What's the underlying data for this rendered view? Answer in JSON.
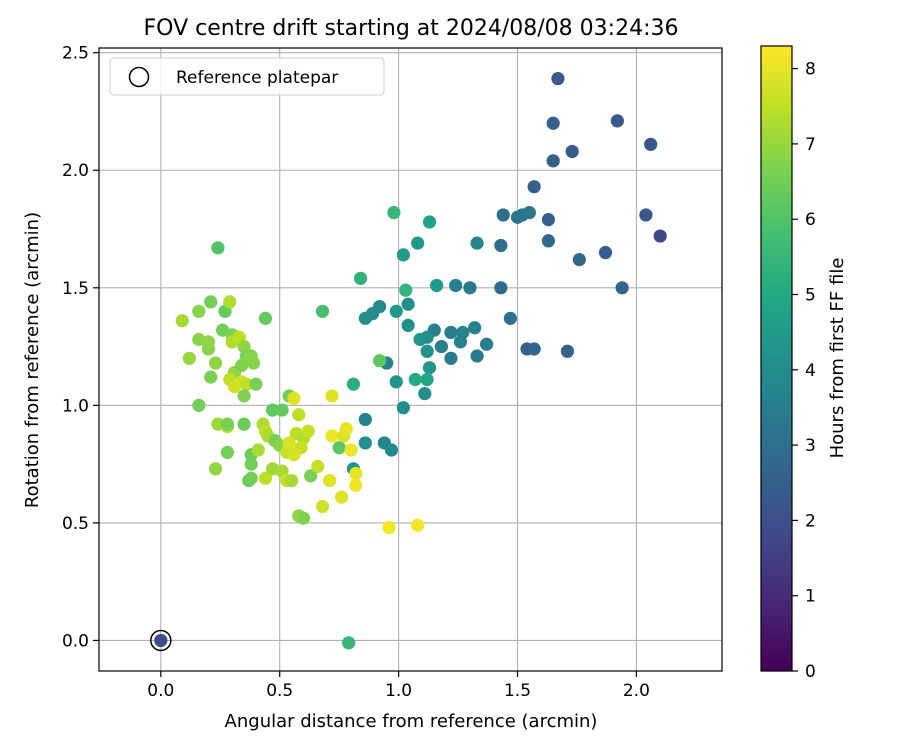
{
  "chart_data": {
    "type": "scatter",
    "title": "FOV centre drift starting at 2024/08/08 03:24:36",
    "xlabel": "Angular distance from reference (arcmin)",
    "ylabel": "Rotation from reference (arcmin)",
    "xlim": [
      -0.26,
      2.36
    ],
    "ylim": [
      -0.13,
      2.52
    ],
    "xticks": [
      0.0,
      0.5,
      1.0,
      1.5,
      2.0
    ],
    "xtick_labels": [
      "0.0",
      "0.5",
      "1.0",
      "1.5",
      "2.0"
    ],
    "yticks": [
      0.0,
      0.5,
      1.0,
      1.5,
      2.0,
      2.5
    ],
    "ytick_labels": [
      "0.0",
      "0.5",
      "1.0",
      "1.5",
      "2.0",
      "2.5"
    ],
    "grid": true,
    "legend": {
      "position": "top-left",
      "entries": [
        "Reference platepar"
      ]
    },
    "colorbar": {
      "label": "Hours from first FF file",
      "min": 0,
      "max": 8.3,
      "ticks": [
        0,
        1,
        2,
        3,
        4,
        5,
        6,
        7,
        8
      ],
      "tick_labels": [
        "0",
        "1",
        "2",
        "3",
        "4",
        "5",
        "6",
        "7",
        "8"
      ],
      "colormap": "viridis"
    },
    "reference_point": {
      "x": 0.0,
      "y": 0.0
    },
    "points": [
      {
        "x": 0.0,
        "y": 0.0,
        "c": 1.9
      },
      {
        "x": 1.67,
        "y": 2.39,
        "c": 2.3
      },
      {
        "x": 1.65,
        "y": 2.2,
        "c": 2.5
      },
      {
        "x": 1.65,
        "y": 2.04,
        "c": 2.5
      },
      {
        "x": 1.73,
        "y": 2.08,
        "c": 2.4
      },
      {
        "x": 1.92,
        "y": 2.21,
        "c": 2.3
      },
      {
        "x": 2.06,
        "y": 2.11,
        "c": 2.2
      },
      {
        "x": 2.1,
        "y": 1.72,
        "c": 1.8
      },
      {
        "x": 2.04,
        "y": 1.81,
        "c": 2.3
      },
      {
        "x": 1.57,
        "y": 1.93,
        "c": 2.5
      },
      {
        "x": 1.63,
        "y": 1.79,
        "c": 2.6
      },
      {
        "x": 1.63,
        "y": 1.7,
        "c": 2.8
      },
      {
        "x": 1.76,
        "y": 1.62,
        "c": 2.9
      },
      {
        "x": 1.87,
        "y": 1.65,
        "c": 2.5
      },
      {
        "x": 1.94,
        "y": 1.5,
        "c": 2.7
      },
      {
        "x": 1.54,
        "y": 1.24,
        "c": 2.6
      },
      {
        "x": 1.57,
        "y": 1.24,
        "c": 2.7
      },
      {
        "x": 1.71,
        "y": 1.23,
        "c": 2.6
      },
      {
        "x": 1.44,
        "y": 1.81,
        "c": 3.0
      },
      {
        "x": 1.5,
        "y": 1.8,
        "c": 3.2
      },
      {
        "x": 1.52,
        "y": 1.81,
        "c": 3.2
      },
      {
        "x": 1.55,
        "y": 1.82,
        "c": 3.3
      },
      {
        "x": 1.43,
        "y": 1.68,
        "c": 3.0
      },
      {
        "x": 1.43,
        "y": 1.5,
        "c": 2.9
      },
      {
        "x": 1.47,
        "y": 1.37,
        "c": 3.1
      },
      {
        "x": 1.33,
        "y": 1.69,
        "c": 3.8
      },
      {
        "x": 1.3,
        "y": 1.5,
        "c": 3.3
      },
      {
        "x": 1.24,
        "y": 1.51,
        "c": 3.6
      },
      {
        "x": 1.37,
        "y": 1.26,
        "c": 3.5
      },
      {
        "x": 1.33,
        "y": 1.21,
        "c": 3.4
      },
      {
        "x": 1.27,
        "y": 1.31,
        "c": 3.8
      },
      {
        "x": 1.32,
        "y": 1.33,
        "c": 3.6
      },
      {
        "x": 1.26,
        "y": 1.27,
        "c": 3.6
      },
      {
        "x": 1.22,
        "y": 1.2,
        "c": 3.4
      },
      {
        "x": 1.22,
        "y": 1.31,
        "c": 3.5
      },
      {
        "x": 1.18,
        "y": 1.25,
        "c": 3.6
      },
      {
        "x": 1.15,
        "y": 1.32,
        "c": 3.7
      },
      {
        "x": 1.16,
        "y": 1.51,
        "c": 4.5
      },
      {
        "x": 1.13,
        "y": 1.78,
        "c": 4.8
      },
      {
        "x": 1.08,
        "y": 1.69,
        "c": 4.4
      },
      {
        "x": 0.98,
        "y": 1.82,
        "c": 5.5
      },
      {
        "x": 1.02,
        "y": 1.64,
        "c": 4.5
      },
      {
        "x": 1.03,
        "y": 1.49,
        "c": 5.4
      },
      {
        "x": 1.04,
        "y": 1.43,
        "c": 4.1
      },
      {
        "x": 1.04,
        "y": 1.34,
        "c": 4.1
      },
      {
        "x": 0.99,
        "y": 1.4,
        "c": 4.4
      },
      {
        "x": 1.09,
        "y": 1.28,
        "c": 4.4
      },
      {
        "x": 1.12,
        "y": 1.23,
        "c": 4.2
      },
      {
        "x": 1.12,
        "y": 1.29,
        "c": 4.1
      },
      {
        "x": 1.13,
        "y": 1.16,
        "c": 4.3
      },
      {
        "x": 1.12,
        "y": 1.11,
        "c": 4.9
      },
      {
        "x": 1.11,
        "y": 1.05,
        "c": 4.1
      },
      {
        "x": 1.07,
        "y": 1.11,
        "c": 5.0
      },
      {
        "x": 0.99,
        "y": 1.1,
        "c": 4.3
      },
      {
        "x": 1.02,
        "y": 0.99,
        "c": 4.1
      },
      {
        "x": 0.95,
        "y": 1.18,
        "c": 3.7
      },
      {
        "x": 0.92,
        "y": 1.19,
        "c": 6.2
      },
      {
        "x": 0.86,
        "y": 1.37,
        "c": 4.1
      },
      {
        "x": 0.89,
        "y": 1.39,
        "c": 4.0
      },
      {
        "x": 0.92,
        "y": 1.42,
        "c": 3.9
      },
      {
        "x": 0.84,
        "y": 1.54,
        "c": 5.3
      },
      {
        "x": 0.86,
        "y": 0.94,
        "c": 3.7
      },
      {
        "x": 0.94,
        "y": 0.84,
        "c": 3.8
      },
      {
        "x": 0.97,
        "y": 0.81,
        "c": 3.9
      },
      {
        "x": 0.86,
        "y": 0.84,
        "c": 4.1
      },
      {
        "x": 0.81,
        "y": 1.09,
        "c": 5.2
      },
      {
        "x": 0.81,
        "y": 0.73,
        "c": 4.2
      },
      {
        "x": 0.79,
        "y": -0.01,
        "c": 5.5
      },
      {
        "x": 0.68,
        "y": 1.4,
        "c": 5.8
      },
      {
        "x": 0.24,
        "y": 1.67,
        "c": 6.0
      },
      {
        "x": 0.27,
        "y": 1.4,
        "c": 6.3
      },
      {
        "x": 0.29,
        "y": 1.44,
        "c": 7.3
      },
      {
        "x": 0.21,
        "y": 1.44,
        "c": 6.5
      },
      {
        "x": 0.16,
        "y": 1.4,
        "c": 6.8
      },
      {
        "x": 0.09,
        "y": 1.36,
        "c": 7.2
      },
      {
        "x": 0.16,
        "y": 1.28,
        "c": 6.8
      },
      {
        "x": 0.2,
        "y": 1.24,
        "c": 6.8
      },
      {
        "x": 0.2,
        "y": 1.27,
        "c": 6.9
      },
      {
        "x": 0.12,
        "y": 1.2,
        "c": 7.0
      },
      {
        "x": 0.23,
        "y": 1.18,
        "c": 6.9
      },
      {
        "x": 0.21,
        "y": 1.12,
        "c": 6.6
      },
      {
        "x": 0.26,
        "y": 1.32,
        "c": 6.5
      },
      {
        "x": 0.3,
        "y": 1.3,
        "c": 6.7
      },
      {
        "x": 0.3,
        "y": 1.27,
        "c": 7.3
      },
      {
        "x": 0.33,
        "y": 1.29,
        "c": 7.5
      },
      {
        "x": 0.35,
        "y": 1.25,
        "c": 6.9
      },
      {
        "x": 0.36,
        "y": 1.21,
        "c": 6.6
      },
      {
        "x": 0.38,
        "y": 1.21,
        "c": 6.8
      },
      {
        "x": 0.39,
        "y": 1.18,
        "c": 6.8
      },
      {
        "x": 0.31,
        "y": 1.14,
        "c": 6.9
      },
      {
        "x": 0.34,
        "y": 1.17,
        "c": 6.7
      },
      {
        "x": 0.29,
        "y": 1.11,
        "c": 7.5
      },
      {
        "x": 0.31,
        "y": 1.08,
        "c": 7.7
      },
      {
        "x": 0.34,
        "y": 1.1,
        "c": 7.8
      },
      {
        "x": 0.36,
        "y": 1.09,
        "c": 7.5
      },
      {
        "x": 0.4,
        "y": 1.09,
        "c": 6.6
      },
      {
        "x": 0.35,
        "y": 1.04,
        "c": 6.7
      },
      {
        "x": 0.44,
        "y": 1.37,
        "c": 6.3
      },
      {
        "x": 0.16,
        "y": 1.0,
        "c": 6.5
      },
      {
        "x": 0.24,
        "y": 0.92,
        "c": 7.1
      },
      {
        "x": 0.28,
        "y": 0.91,
        "c": 7.3
      },
      {
        "x": 0.28,
        "y": 0.92,
        "c": 6.6
      },
      {
        "x": 0.35,
        "y": 0.92,
        "c": 6.4
      },
      {
        "x": 0.28,
        "y": 0.8,
        "c": 6.5
      },
      {
        "x": 0.23,
        "y": 0.73,
        "c": 6.9
      },
      {
        "x": 0.38,
        "y": 0.79,
        "c": 6.4
      },
      {
        "x": 0.38,
        "y": 0.75,
        "c": 6.5
      },
      {
        "x": 0.41,
        "y": 0.81,
        "c": 7.2
      },
      {
        "x": 0.43,
        "y": 0.92,
        "c": 7.3
      },
      {
        "x": 0.44,
        "y": 0.89,
        "c": 7.5
      },
      {
        "x": 0.45,
        "y": 0.87,
        "c": 7.3
      },
      {
        "x": 0.47,
        "y": 0.98,
        "c": 6.2
      },
      {
        "x": 0.48,
        "y": 0.85,
        "c": 6.6
      },
      {
        "x": 0.5,
        "y": 0.83,
        "c": 6.8
      },
      {
        "x": 0.37,
        "y": 0.68,
        "c": 6.3
      },
      {
        "x": 0.38,
        "y": 0.69,
        "c": 6.5
      },
      {
        "x": 0.44,
        "y": 0.69,
        "c": 7.5
      },
      {
        "x": 0.47,
        "y": 0.73,
        "c": 7.1
      },
      {
        "x": 0.51,
        "y": 0.72,
        "c": 7.2
      },
      {
        "x": 0.53,
        "y": 0.68,
        "c": 7.6
      },
      {
        "x": 0.55,
        "y": 0.68,
        "c": 7.2
      },
      {
        "x": 0.51,
        "y": 0.98,
        "c": 6.3
      },
      {
        "x": 0.54,
        "y": 1.04,
        "c": 6.5
      },
      {
        "x": 0.56,
        "y": 1.03,
        "c": 7.9
      },
      {
        "x": 0.57,
        "y": 0.88,
        "c": 7.4
      },
      {
        "x": 0.58,
        "y": 0.96,
        "c": 7.5
      },
      {
        "x": 0.6,
        "y": 0.86,
        "c": 7.3
      },
      {
        "x": 0.62,
        "y": 0.89,
        "c": 7.6
      },
      {
        "x": 0.59,
        "y": 0.82,
        "c": 7.6
      },
      {
        "x": 0.58,
        "y": 0.53,
        "c": 6.9
      },
      {
        "x": 0.6,
        "y": 0.52,
        "c": 6.7
      },
      {
        "x": 0.63,
        "y": 0.7,
        "c": 6.6
      },
      {
        "x": 0.66,
        "y": 0.74,
        "c": 7.6
      },
      {
        "x": 0.68,
        "y": 0.57,
        "c": 7.7
      },
      {
        "x": 0.71,
        "y": 0.68,
        "c": 7.9
      },
      {
        "x": 0.72,
        "y": 1.04,
        "c": 7.9
      },
      {
        "x": 0.72,
        "y": 0.87,
        "c": 8.1
      },
      {
        "x": 0.75,
        "y": 0.82,
        "c": 6.2
      },
      {
        "x": 0.76,
        "y": 0.61,
        "c": 7.9
      },
      {
        "x": 0.77,
        "y": 0.87,
        "c": 7.8
      },
      {
        "x": 0.78,
        "y": 0.9,
        "c": 8.0
      },
      {
        "x": 0.8,
        "y": 0.81,
        "c": 8.1
      },
      {
        "x": 0.82,
        "y": 0.71,
        "c": 8.0
      },
      {
        "x": 0.82,
        "y": 0.66,
        "c": 8.1
      },
      {
        "x": 0.96,
        "y": 0.48,
        "c": 8.2
      },
      {
        "x": 1.08,
        "y": 0.49,
        "c": 8.2
      },
      {
        "x": 0.53,
        "y": 0.8,
        "c": 7.6
      },
      {
        "x": 0.56,
        "y": 0.79,
        "c": 7.8
      },
      {
        "x": 0.54,
        "y": 0.84,
        "c": 7.8
      }
    ]
  }
}
